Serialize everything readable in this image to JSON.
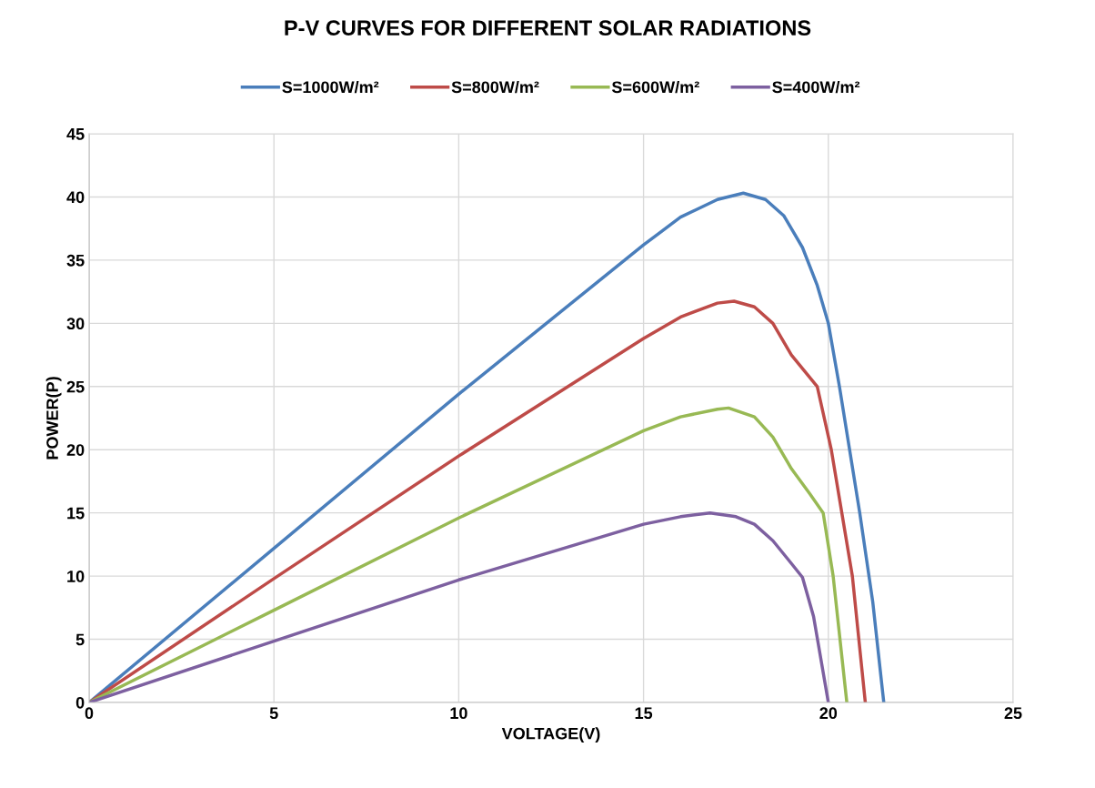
{
  "chart_data": {
    "type": "line",
    "title": "P-V CURVES FOR DIFFERENT SOLAR RADIATIONS",
    "xlabel": "VOLTAGE(V)",
    "ylabel": "POWER(P)",
    "xlim": [
      0,
      25
    ],
    "ylim": [
      0,
      45
    ],
    "xticks": [
      0,
      5,
      10,
      15,
      20,
      25
    ],
    "yticks": [
      0,
      5,
      10,
      15,
      20,
      25,
      30,
      35,
      40,
      45
    ],
    "grid": true,
    "legend": "top",
    "marker": "none",
    "line_style": "solid",
    "series": [
      {
        "name": "S=1000W/m²",
        "color": "#4a7ebb",
        "x": [
          0,
          5,
          10,
          12.5,
          15,
          16,
          17,
          17.7,
          18.3,
          18.8,
          19.3,
          19.7,
          20,
          20.3,
          20.85,
          21.2,
          21.5
        ],
        "values": [
          0,
          12.2,
          24.4,
          30.3,
          36.2,
          38.4,
          39.8,
          40.3,
          39.8,
          38.5,
          36,
          33,
          30,
          25,
          15,
          8,
          0
        ]
      },
      {
        "name": "S=800W/m²",
        "color": "#be4b48",
        "x": [
          0,
          5,
          10,
          15,
          16,
          17,
          17.45,
          18,
          18.5,
          19,
          19.7,
          20.08,
          20.65,
          21
        ],
        "values": [
          0,
          9.8,
          19.5,
          28.8,
          30.5,
          31.6,
          31.75,
          31.3,
          30,
          27.5,
          25,
          20,
          10,
          0
        ]
      },
      {
        "name": "S=600W/m²",
        "color": "#98b954",
        "x": [
          0,
          5,
          10,
          15,
          16,
          17,
          17.3,
          18,
          18.5,
          19,
          19.5,
          19.86,
          20.13,
          20.5
        ],
        "values": [
          0,
          7.3,
          14.6,
          21.5,
          22.6,
          23.2,
          23.3,
          22.6,
          21,
          18.5,
          16.5,
          15,
          10,
          0
        ]
      },
      {
        "name": "S=400W/m²",
        "color": "#7d60a0",
        "x": [
          0,
          5,
          10,
          15,
          16,
          16.8,
          17.5,
          18,
          18.5,
          19,
          19.3,
          19.6,
          20
        ],
        "values": [
          0,
          4.85,
          9.7,
          14.1,
          14.7,
          15,
          14.7,
          14.1,
          12.8,
          11,
          9.9,
          6.8,
          0
        ]
      }
    ]
  }
}
